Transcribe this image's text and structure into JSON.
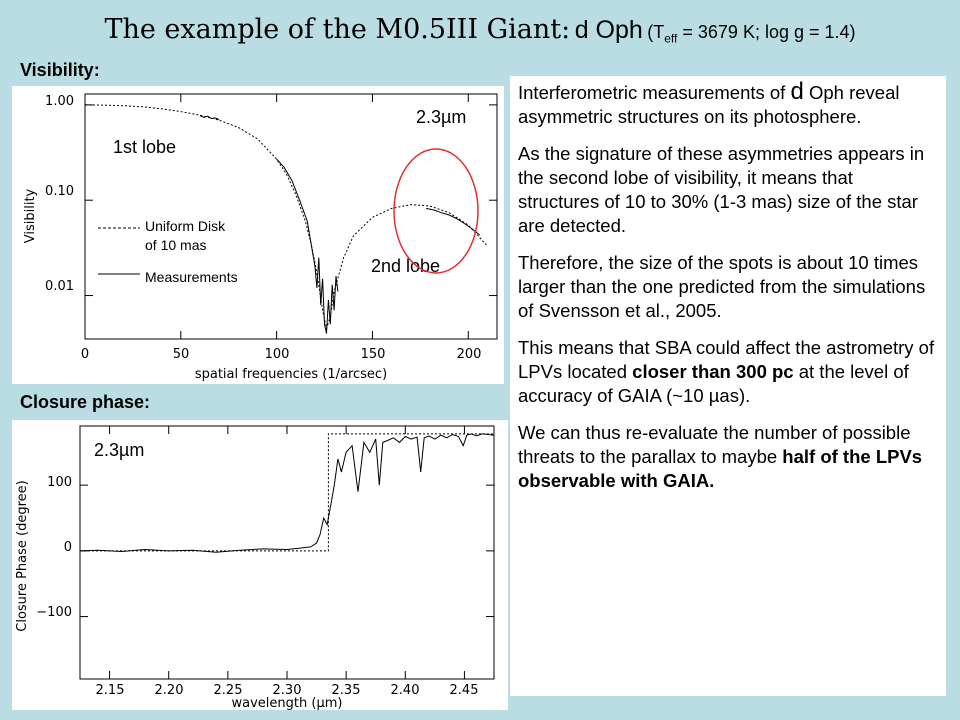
{
  "title": {
    "main": "The example of the M0.5III Giant:",
    "star": "d Oph",
    "params_open": "(T",
    "params_sub": "eff",
    "params_rest": "= 3679 K; log g = 1.4)"
  },
  "sections": {
    "visibility": "Visibility:",
    "closure": "Closure phase:"
  },
  "chart_data": [
    {
      "type": "line",
      "xlabel": "spatial frequencies (1/arcsec)",
      "ylabel": "Visibility",
      "xlim": [
        0,
        215
      ],
      "ylim": [
        0.0035,
        1.3
      ],
      "yscale": "log",
      "xticks": [
        "0",
        "50",
        "100",
        "150",
        "200"
      ],
      "yticks": [
        "1.00",
        "0.10",
        "0.01"
      ],
      "annotations": {
        "band": "2.3µm",
        "lobe1": "1st lobe",
        "lobe2": "2nd lobe"
      },
      "legend": {
        "model_l1": "Uniform Disk",
        "model_l2": "of 10 mas",
        "meas": "Measurements"
      },
      "series": [
        {
          "x": [
            0,
            10,
            20,
            30,
            40,
            50,
            60,
            70,
            80,
            90,
            100,
            105,
            110,
            115,
            118,
            120,
            122,
            124,
            126,
            128,
            130,
            135,
            140,
            150,
            160,
            170,
            180,
            190,
            200,
            210
          ],
          "y": [
            1.0,
            0.995,
            0.98,
            0.955,
            0.91,
            0.85,
            0.78,
            0.69,
            0.58,
            0.44,
            0.27,
            0.19,
            0.115,
            0.06,
            0.035,
            0.022,
            0.013,
            0.007,
            0.0045,
            0.006,
            0.011,
            0.025,
            0.042,
            0.066,
            0.082,
            0.09,
            0.087,
            0.074,
            0.055,
            0.033
          ]
        },
        {
          "x": [
            60,
            62,
            64,
            66,
            68,
            70,
            100,
            104,
            108,
            112,
            116,
            118,
            120,
            121,
            122,
            123,
            124,
            125,
            126,
            127,
            128,
            129,
            130,
            131,
            132,
            178,
            182,
            186,
            190,
            194,
            198,
            202,
            206
          ],
          "y": [
            0.77,
            0.74,
            0.76,
            0.72,
            0.73,
            0.7,
            0.27,
            0.22,
            0.16,
            0.1,
            0.06,
            0.035,
            0.02,
            0.012,
            0.025,
            0.008,
            0.015,
            0.005,
            0.004,
            0.009,
            0.005,
            0.013,
            0.007,
            0.016,
            0.011,
            0.082,
            0.079,
            0.074,
            0.07,
            0.064,
            0.057,
            0.05,
            0.043
          ]
        }
      ]
    },
    {
      "type": "line",
      "xlabel": "wavelength (µm)",
      "ylabel": "Closure Phase (degree)",
      "xlim": [
        2.125,
        2.475
      ],
      "ylim": [
        -195,
        190
      ],
      "xticks": [
        "2.15",
        "2.20",
        "2.25",
        "2.30",
        "2.35",
        "2.40",
        "2.45"
      ],
      "yticks": [
        "100",
        "0",
        "−100"
      ],
      "annotations": {
        "band": "2.3µm"
      },
      "series": [
        {
          "x": [
            2.125,
            2.14,
            2.16,
            2.18,
            2.2,
            2.22,
            2.24,
            2.26,
            2.28,
            2.3,
            2.31,
            2.32,
            2.325,
            2.328,
            2.331,
            2.334,
            2.337,
            2.34,
            2.343,
            2.346,
            2.35,
            2.355,
            2.36,
            2.365,
            2.37,
            2.375,
            2.378,
            2.381,
            2.385,
            2.39,
            2.395,
            2.4,
            2.405,
            2.41,
            2.413,
            2.416,
            2.42,
            2.425,
            2.43,
            2.435,
            2.44,
            2.445,
            2.449,
            2.452,
            2.456,
            2.46,
            2.465,
            2.47,
            2.475
          ],
          "y": [
            0,
            1,
            -1,
            2,
            0,
            1,
            -2,
            1,
            3,
            2,
            4,
            6,
            12,
            25,
            50,
            40,
            70,
            100,
            140,
            120,
            150,
            160,
            90,
            165,
            150,
            170,
            100,
            165,
            168,
            172,
            165,
            174,
            170,
            173,
            120,
            172,
            175,
            170,
            176,
            172,
            177,
            174,
            160,
            176,
            178,
            175,
            178,
            177,
            176
          ]
        },
        {
          "x": [
            2.125,
            2.335,
            2.335,
            2.475
          ],
          "y": [
            0,
            0,
            178,
            178
          ]
        }
      ]
    }
  ],
  "text": {
    "p1a": "Interferometric measurements of",
    "p1star": "d",
    "p1b": "Oph reveal asymmetric structures on its photosphere.",
    "p2": "As the signature of these asymmetries appears in the second lobe of visibility, it means that structures of 10 to 30% (1-3 mas) size of the star are detected.",
    "p3": "Therefore, the size of the spots is about 10 times larger than the one predicted from the simulations of Svensson et al., 2005.",
    "p4a": "This means that SBA could affect the astrometry of LPVs located",
    "p4b": "closer than 300 pc",
    "p4c": "at the level of accuracy of GAIA (~10 µas).",
    "p5a": "We can thus re-evaluate the number of possible threats to the parallax to maybe",
    "p5b": "half of the LPVs observable with GAIA."
  },
  "colors": {
    "background": "#b9dde3",
    "highlight_circle": "#e03030"
  }
}
